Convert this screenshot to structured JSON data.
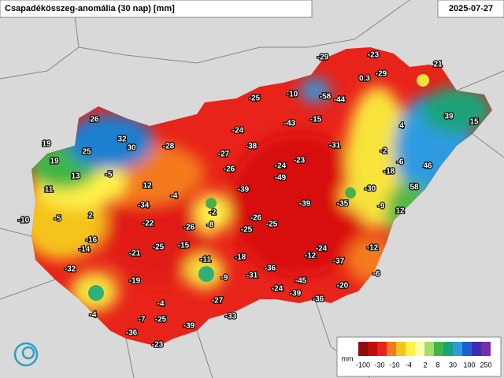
{
  "header": {
    "title": "Csapadékösszeg-anomália (30 nap) [mm]",
    "date": "2025-07-27"
  },
  "stations": [
    -29,
    -23,
    21,
    0.3,
    -29,
    -25,
    -10,
    -58,
    -44,
    26,
    39,
    15,
    -15,
    -43,
    4,
    -24,
    32,
    19,
    25,
    30,
    -28,
    -27,
    -38,
    -31,
    -23,
    -2,
    19,
    -5,
    -26,
    -24,
    -49,
    -6,
    -18,
    46,
    13,
    11,
    12,
    -4,
    -39,
    -30,
    58,
    -2,
    -34,
    -39,
    -35,
    -9,
    12,
    -10,
    -5,
    2,
    -22,
    -26,
    -8,
    -26,
    -25,
    -25,
    -16,
    -14,
    -25,
    -15,
    -24,
    -12,
    -12,
    -21,
    -11,
    -18,
    -37,
    -32,
    -36,
    -31,
    -9,
    -6,
    -19,
    -45,
    -20,
    -24,
    -39,
    -27,
    -36,
    -4,
    -4,
    -33,
    -7,
    -25,
    -39,
    -36,
    -23
  ],
  "legend": {
    "unit": "mm",
    "ticks": [
      -100,
      -30,
      -10,
      -4,
      2,
      8,
      30,
      100,
      250
    ]
  }
}
